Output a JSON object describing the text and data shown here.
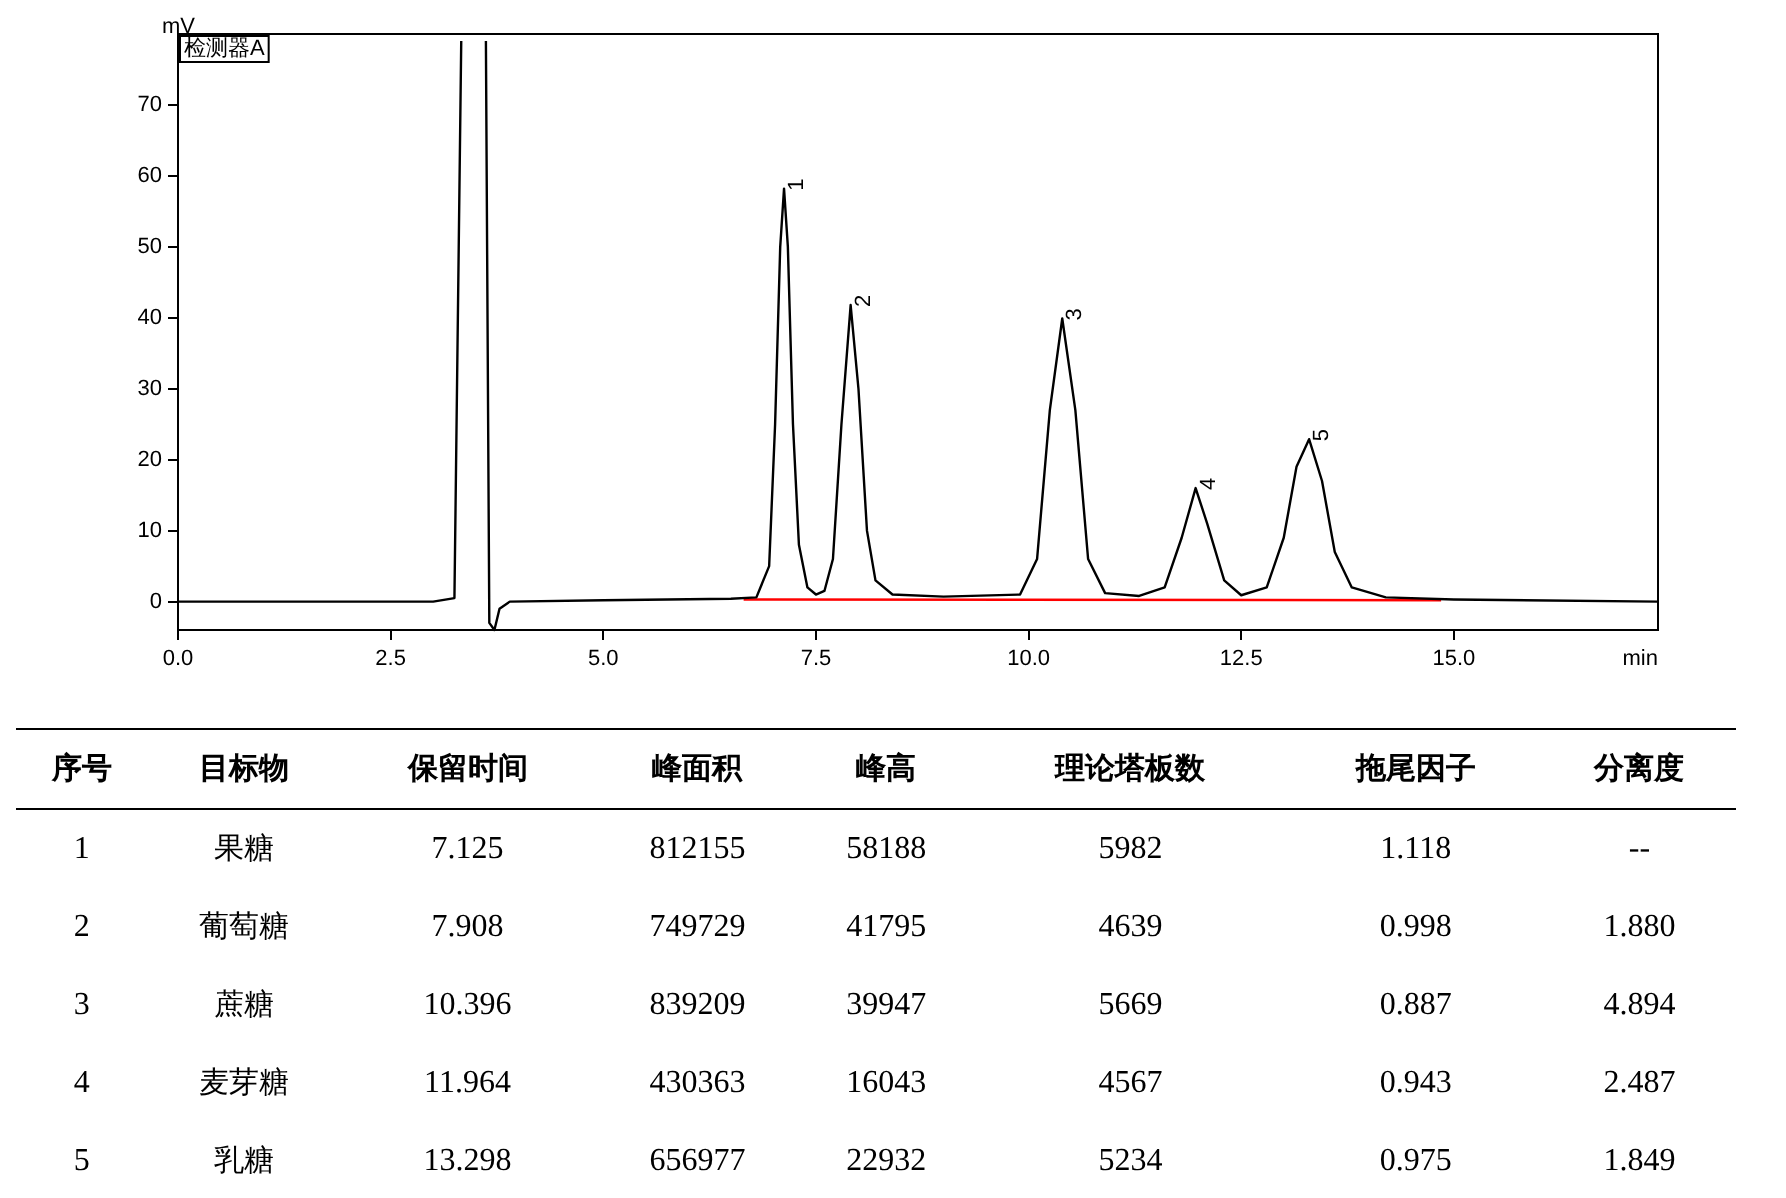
{
  "chart_data": {
    "type": "line",
    "xlabel": "min",
    "ylabel": "mV",
    "xlim": [
      0,
      17.4
    ],
    "ylim": [
      -4,
      80
    ],
    "xticks": [
      {
        "value": 0,
        "label": "0.0"
      },
      {
        "value": 2.5,
        "label": "2.5"
      },
      {
        "value": 5,
        "label": "5.0"
      },
      {
        "value": 7.5,
        "label": "7.5"
      },
      {
        "value": 10,
        "label": "10.0"
      },
      {
        "value": 12.5,
        "label": "12.5"
      },
      {
        "value": 15,
        "label": "15.0"
      }
    ],
    "yticks": [
      0,
      10,
      20,
      30,
      40,
      50,
      60,
      70
    ],
    "grid": false,
    "legend": false,
    "marker": "none",
    "line_style": "solid",
    "series": [
      {
        "color": "#000000",
        "x": [
          0,
          3.0,
          3.25,
          3.33,
          3.47,
          3.62,
          3.66,
          3.72,
          3.78,
          3.9,
          5.0,
          6.5,
          6.8,
          6.95,
          7.02,
          7.08,
          7.125,
          7.17,
          7.23,
          7.3,
          7.4,
          7.5,
          7.6,
          7.7,
          7.8,
          7.908,
          8.0,
          8.1,
          8.2,
          8.4,
          9.0,
          9.9,
          10.1,
          10.25,
          10.396,
          10.55,
          10.7,
          10.9,
          11.3,
          11.6,
          11.8,
          11.964,
          12.1,
          12.3,
          12.5,
          12.8,
          13.0,
          13.15,
          13.298,
          13.45,
          13.6,
          13.8,
          14.2,
          15.0,
          17.4
        ],
        "values": [
          0,
          0,
          0.5,
          79,
          null,
          79,
          -3,
          -4,
          -1,
          0,
          0.2,
          0.4,
          0.6,
          5,
          25,
          50,
          58.2,
          50,
          25,
          8,
          2,
          1,
          1.5,
          6,
          25,
          41.8,
          30,
          10,
          3,
          1,
          0.7,
          1,
          6,
          27,
          39.9,
          27,
          6,
          1.2,
          0.8,
          2,
          9,
          16.0,
          11,
          3,
          0.9,
          2,
          9,
          19,
          22.9,
          17,
          7,
          2,
          0.6,
          0.3,
          0
        ]
      },
      {
        "color": "#ff0000",
        "x": [
          6.65,
          14.85
        ],
        "values": [
          0.3,
          0.2
        ]
      }
    ],
    "annotations": [
      "检测器A",
      {
        "text": "1",
        "x": 7.125,
        "y": 58.2
      },
      {
        "text": "2",
        "x": 7.908,
        "y": 41.8
      },
      {
        "text": "3",
        "x": 10.396,
        "y": 39.9
      },
      {
        "text": "4",
        "x": 11.964,
        "y": 16.0
      },
      {
        "text": "5",
        "x": 13.298,
        "y": 22.9
      },
      "序号",
      "目标物",
      "保留时间",
      "峰面积",
      "峰高",
      "理论塔板数",
      "拖尾因子",
      "分离度",
      "1",
      "果糖",
      "7.125",
      "812155",
      "58188",
      "5982",
      "1.118",
      "--",
      "2",
      "葡萄糖",
      "7.908",
      "749729",
      "41795",
      "4639",
      "0.998",
      "1.880",
      "3",
      "蔗糖",
      "10.396",
      "839209",
      "39947",
      "5669",
      "0.887",
      "4.894",
      "4",
      "麦芽糖",
      "11.964",
      "430363",
      "16043",
      "4567",
      "0.943",
      "2.487",
      "5",
      "乳糖",
      "13.298",
      "656977",
      "22932",
      "5234",
      "0.975",
      "1.849"
    ]
  }
}
